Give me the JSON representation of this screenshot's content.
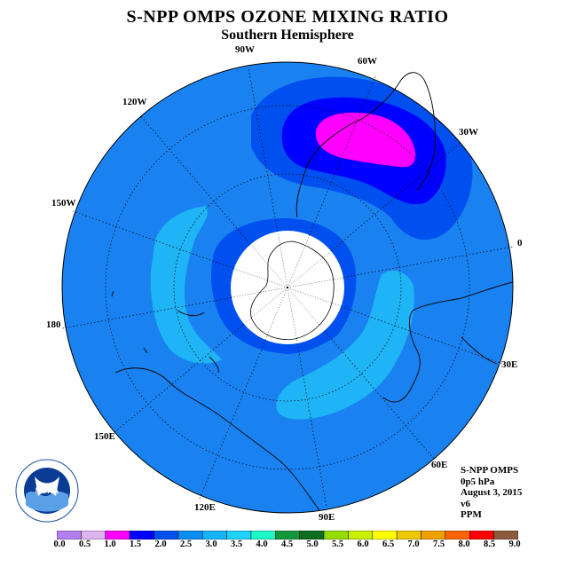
{
  "header": {
    "title": "S-NPP OMPS OZONE MIXING RATIO",
    "subtitle": "Southern Hemisphere"
  },
  "longitude_labels": [
    "90W",
    "60W",
    "30W",
    "0",
    "30E",
    "60E",
    "90E",
    "120E",
    "150E",
    "180",
    "150W",
    "120W"
  ],
  "info": {
    "instrument": "S-NPP OMPS",
    "pressure": "0p5 hPa",
    "date": "August 3, 2015",
    "version": "v6",
    "units": "PPM"
  },
  "colorbar": {
    "ticks": [
      "0.0",
      "0.5",
      "1.0",
      "1.5",
      "2.0",
      "2.5",
      "3.0",
      "3.5",
      "4.0",
      "4.5",
      "5.0",
      "5.5",
      "6.0",
      "6.5",
      "7.0",
      "7.5",
      "8.0",
      "8.5",
      "9.0"
    ],
    "colors": [
      "#b27ff0",
      "#dcb4f0",
      "#ff00ff",
      "#0000ff",
      "#0050f0",
      "#0a8cf0",
      "#14b4ff",
      "#1ed2ff",
      "#1efac8",
      "#14963c",
      "#0a6e1e",
      "#96dc00",
      "#c8f000",
      "#ffff00",
      "#f0c800",
      "#f0a000",
      "#ff6400",
      "#ff0000",
      "#8c5a3c"
    ]
  },
  "colors": {
    "ocean_bg": "#1982f0",
    "band_light": "#1eb4f5",
    "band_mid": "#0050f0",
    "band_dark": "#0000ff",
    "max": "#ff00ff",
    "pole_mask": "#ffffff"
  },
  "logo": {
    "text": "NOAA"
  }
}
